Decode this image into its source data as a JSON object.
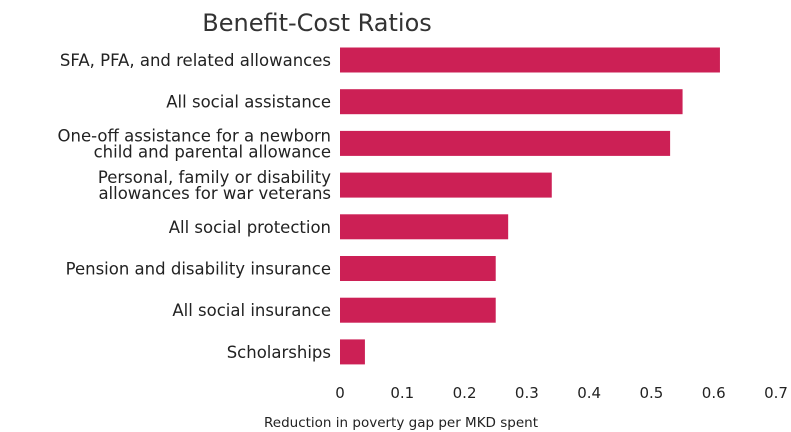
{
  "chart_data": {
    "type": "bar",
    "orientation": "horizontal",
    "title": "Benefit-Cost Ratios",
    "xlabel": "Reduction in poverty gap per MKD spent",
    "ylabel": "",
    "xlim": [
      0,
      0.7
    ],
    "xticks": [
      "0",
      "0.1",
      "0.2",
      "0.3",
      "0.4",
      "0.5",
      "0.6",
      "0.7"
    ],
    "grid": false,
    "bar_color": "#cc2055",
    "categories": [
      [
        "SFA, PFA, and related allowances"
      ],
      [
        "All social assistance"
      ],
      [
        "One-off assistance for a newborn",
        "child and parental allowance"
      ],
      [
        "Personal, family or disability",
        "allowances for war veterans"
      ],
      [
        "All social protection"
      ],
      [
        "Pension and disability insurance"
      ],
      [
        "All social insurance"
      ],
      [
        "Scholarships"
      ]
    ],
    "values": [
      0.61,
      0.55,
      0.53,
      0.34,
      0.27,
      0.25,
      0.25,
      0.04
    ]
  }
}
